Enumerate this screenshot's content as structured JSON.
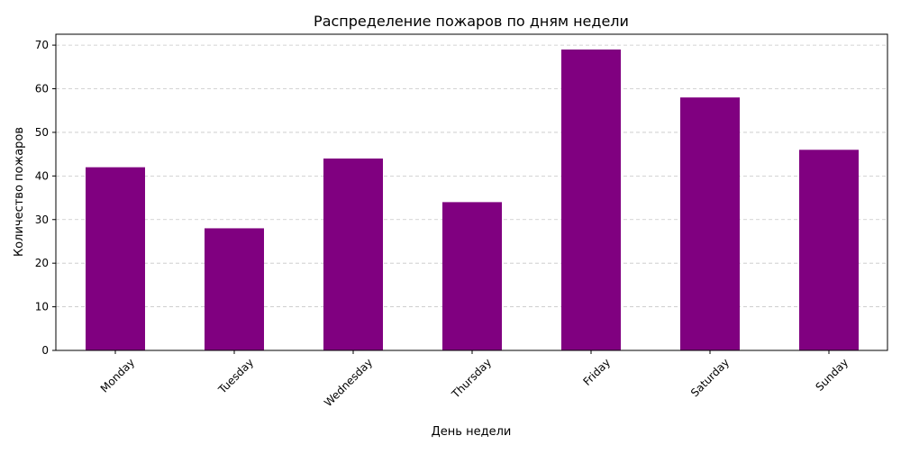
{
  "chart_data": {
    "type": "bar",
    "title": "Распределение пожаров по дням недели",
    "xlabel": "День недели",
    "ylabel": "Количество пожаров",
    "categories": [
      "Monday",
      "Tuesday",
      "Wednesday",
      "Thursday",
      "Friday",
      "Saturday",
      "Sunday"
    ],
    "values": [
      42,
      28,
      44,
      34,
      69,
      58,
      46
    ],
    "ylim": [
      0,
      72.5
    ],
    "yticks": [
      0,
      10,
      20,
      30,
      40,
      50,
      60,
      70
    ],
    "bar_color": "#800080",
    "grid": "y-dashed",
    "x_tick_rotation": 45
  }
}
